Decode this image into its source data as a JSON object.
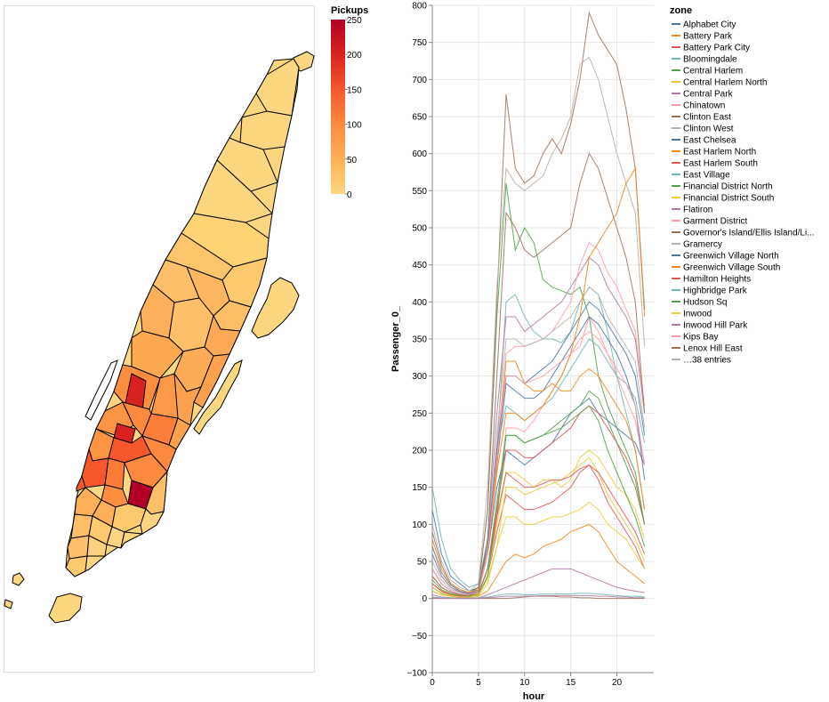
{
  "colors": {
    "scale": [
      "#fdd780",
      "#fdb058",
      "#fc8a3e",
      "#f4582b",
      "#d9221f",
      "#b10026"
    ],
    "border": "#000000",
    "axis": "#888888",
    "grid": "#e6e6e6",
    "palette": [
      "#4c78a8",
      "#f58518",
      "#e45756",
      "#72b7b2",
      "#54a24b",
      "#eeca3b",
      "#b279a2",
      "#ff9da6",
      "#9d755d",
      "#bab0ac"
    ]
  },
  "map_legend": {
    "title": "Pickups",
    "ticks": [
      "250",
      "200",
      "150",
      "100",
      "50",
      "0"
    ]
  },
  "line_legend": {
    "title": "zone",
    "entries": [
      "Alphabet City",
      "Battery Park",
      "Battery Park City",
      "Bloomingdale",
      "Central Harlem",
      "Central Harlem North",
      "Central Park",
      "Chinatown",
      "Clinton East",
      "Clinton West",
      "East Chelsea",
      "East Harlem North",
      "East Harlem South",
      "East Village",
      "Financial District North",
      "Financial District South",
      "Flatiron",
      "Garment District",
      "Governor's Island/Ellis Island/Li...",
      "Gramercy",
      "Greenwich Village North",
      "Greenwich Village South",
      "Hamilton Heights",
      "Highbridge Park",
      "Hudson Sq",
      "Inwood",
      "Inwood Hill Park",
      "Kips Bay",
      "Lenox Hill East",
      "…38 entries"
    ]
  },
  "chart_data": [
    {
      "type": "choropleth",
      "legend_title": "Pickups",
      "color_domain": [
        0,
        250
      ],
      "note_values": {
        "Midtown Center": 250,
        "Union Sq": 240,
        "Midtown East": 230,
        "Upper East Side South": 90
      }
    },
    {
      "type": "line",
      "xlabel": "hour",
      "ylabel": "Passenger_0_",
      "xlim": [
        0,
        24
      ],
      "ylim": [
        -100,
        800
      ],
      "x_ticks": [
        0,
        5,
        10,
        15,
        20
      ],
      "y_ticks": [
        -100,
        -50,
        0,
        50,
        100,
        150,
        200,
        250,
        300,
        350,
        400,
        450,
        500,
        550,
        600,
        650,
        700,
        750,
        800
      ],
      "grid": true,
      "legend_title": "zone",
      "legend_position": "right",
      "x": [
        0,
        1,
        2,
        3,
        4,
        5,
        6,
        7,
        8,
        9,
        10,
        11,
        12,
        13,
        14,
        15,
        16,
        17,
        18,
        19,
        20,
        21,
        22,
        23
      ],
      "series": [
        {
          "name": "Alphabet City",
          "values": [
            120,
            60,
            30,
            20,
            10,
            15,
            60,
            150,
            200,
            190,
            180,
            190,
            200,
            210,
            230,
            250,
            260,
            270,
            250,
            240,
            230,
            220,
            210,
            180
          ]
        },
        {
          "name": "Battery Park",
          "values": [
            10,
            5,
            3,
            2,
            2,
            3,
            10,
            30,
            50,
            60,
            55,
            60,
            70,
            75,
            80,
            90,
            95,
            100,
            90,
            70,
            50,
            40,
            30,
            20
          ]
        },
        {
          "name": "Battery Park City",
          "values": [
            20,
            10,
            5,
            3,
            3,
            5,
            30,
            90,
            140,
            130,
            120,
            120,
            125,
            130,
            140,
            150,
            170,
            180,
            160,
            130,
            110,
            90,
            70,
            40
          ]
        },
        {
          "name": "Bloomingdale",
          "values": [
            30,
            15,
            8,
            5,
            5,
            10,
            60,
            200,
            400,
            410,
            380,
            360,
            350,
            350,
            345,
            360,
            400,
            420,
            410,
            360,
            300,
            250,
            200,
            120
          ]
        },
        {
          "name": "Central Harlem",
          "values": [
            60,
            30,
            15,
            8,
            6,
            15,
            120,
            380,
            560,
            470,
            500,
            480,
            430,
            420,
            415,
            410,
            420,
            380,
            300,
            260,
            230,
            200,
            170,
            100
          ]
        },
        {
          "name": "Central Harlem North",
          "values": [
            20,
            10,
            5,
            3,
            3,
            5,
            30,
            100,
            170,
            170,
            160,
            150,
            160,
            160,
            150,
            160,
            190,
            200,
            190,
            170,
            150,
            140,
            120,
            80
          ]
        },
        {
          "name": "Central Park",
          "values": [
            5,
            2,
            1,
            1,
            1,
            1,
            5,
            10,
            15,
            20,
            25,
            30,
            35,
            40,
            40,
            40,
            35,
            30,
            25,
            20,
            15,
            12,
            10,
            8
          ]
        },
        {
          "name": "Chinatown",
          "values": [
            40,
            20,
            10,
            6,
            5,
            8,
            40,
            120,
            230,
            230,
            225,
            240,
            260,
            280,
            300,
            330,
            340,
            380,
            360,
            330,
            300,
            270,
            240,
            180
          ]
        },
        {
          "name": "Clinton East",
          "values": [
            90,
            45,
            20,
            12,
            8,
            15,
            120,
            400,
            680,
            580,
            560,
            570,
            600,
            620,
            600,
            640,
            700,
            790,
            760,
            740,
            720,
            660,
            580,
            390
          ]
        },
        {
          "name": "Clinton West",
          "values": [
            100,
            50,
            25,
            15,
            10,
            20,
            150,
            420,
            580,
            560,
            550,
            560,
            570,
            600,
            620,
            650,
            720,
            730,
            700,
            650,
            600,
            560,
            520,
            340
          ]
        },
        {
          "name": "East Chelsea",
          "values": [
            40,
            20,
            10,
            6,
            5,
            8,
            60,
            180,
            290,
            280,
            270,
            270,
            280,
            300,
            320,
            340,
            360,
            380,
            370,
            350,
            330,
            300,
            260,
            160
          ]
        },
        {
          "name": "East Harlem North",
          "values": [
            30,
            15,
            8,
            5,
            4,
            10,
            60,
            180,
            320,
            320,
            290,
            280,
            280,
            290,
            280,
            280,
            300,
            310,
            300,
            280,
            260,
            240,
            200,
            120
          ]
        },
        {
          "name": "East Harlem South",
          "values": [
            20,
            10,
            5,
            3,
            3,
            6,
            40,
            120,
            200,
            200,
            190,
            190,
            200,
            210,
            220,
            230,
            250,
            260,
            250,
            230,
            210,
            190,
            160,
            100
          ]
        },
        {
          "name": "East Village",
          "values": [
            150,
            80,
            40,
            25,
            15,
            20,
            80,
            200,
            260,
            250,
            240,
            250,
            260,
            270,
            290,
            310,
            330,
            350,
            340,
            320,
            300,
            290,
            270,
            210
          ]
        },
        {
          "name": "Financial District North",
          "values": [
            15,
            7,
            4,
            2,
            2,
            4,
            30,
            110,
            220,
            220,
            210,
            215,
            220,
            225,
            230,
            240,
            250,
            260,
            240,
            200,
            170,
            140,
            110,
            70
          ]
        },
        {
          "name": "Financial District South",
          "values": [
            10,
            5,
            3,
            2,
            2,
            3,
            20,
            70,
            150,
            150,
            140,
            145,
            150,
            155,
            160,
            170,
            180,
            190,
            170,
            140,
            120,
            100,
            80,
            50
          ]
        },
        {
          "name": "Flatiron",
          "values": [
            60,
            30,
            15,
            9,
            6,
            12,
            80,
            250,
            380,
            380,
            360,
            370,
            380,
            390,
            400,
            420,
            440,
            460,
            450,
            420,
            400,
            380,
            350,
            250
          ]
        },
        {
          "name": "Garment District",
          "values": [
            30,
            15,
            8,
            5,
            4,
            8,
            60,
            200,
            330,
            340,
            340,
            345,
            350,
            360,
            380,
            400,
            450,
            480,
            470,
            440,
            420,
            390,
            360,
            260
          ]
        },
        {
          "name": "Governor's Island/Ellis Island/Li...",
          "values": [
            0,
            0,
            0,
            0,
            0,
            0,
            0,
            0,
            0,
            1,
            2,
            3,
            3,
            3,
            2,
            2,
            1,
            1,
            0,
            0,
            0,
            0,
            0,
            0
          ]
        },
        {
          "name": "Gramercy",
          "values": [
            50,
            25,
            12,
            8,
            5,
            10,
            70,
            220,
            350,
            350,
            340,
            345,
            350,
            360,
            370,
            380,
            400,
            420,
            410,
            380,
            360,
            340,
            320,
            230
          ]
        },
        {
          "name": "Greenwich Village North",
          "values": [
            70,
            35,
            18,
            10,
            7,
            12,
            70,
            200,
            300,
            300,
            290,
            300,
            310,
            320,
            340,
            360,
            380,
            400,
            390,
            370,
            350,
            330,
            300,
            220
          ]
        },
        {
          "name": "Greenwich Village South",
          "values": [
            80,
            40,
            20,
            12,
            8,
            12,
            60,
            170,
            250,
            250,
            240,
            250,
            260,
            280,
            300,
            330,
            380,
            460,
            480,
            500,
            520,
            560,
            580,
            380
          ]
        },
        {
          "name": "Hamilton Heights",
          "values": [
            20,
            10,
            5,
            3,
            3,
            6,
            40,
            110,
            170,
            160,
            150,
            150,
            155,
            160,
            160,
            165,
            175,
            180,
            170,
            150,
            130,
            110,
            90,
            60
          ]
        },
        {
          "name": "Highbridge Park",
          "values": [
            2,
            1,
            1,
            0,
            0,
            1,
            2,
            4,
            6,
            6,
            5,
            5,
            6,
            6,
            6,
            6,
            7,
            7,
            6,
            5,
            4,
            3,
            3,
            2
          ]
        },
        {
          "name": "Hudson Sq",
          "values": [
            25,
            12,
            6,
            4,
            3,
            6,
            40,
            130,
            220,
            220,
            210,
            215,
            220,
            230,
            240,
            250,
            260,
            280,
            270,
            240,
            210,
            180,
            150,
            100
          ]
        },
        {
          "name": "Inwood",
          "values": [
            15,
            8,
            4,
            2,
            2,
            5,
            25,
            70,
            110,
            110,
            100,
            100,
            105,
            110,
            110,
            115,
            120,
            130,
            120,
            100,
            90,
            80,
            60,
            40
          ]
        },
        {
          "name": "Inwood Hill Park",
          "values": [
            1,
            0,
            0,
            0,
            0,
            0,
            1,
            2,
            3,
            3,
            3,
            3,
            4,
            4,
            4,
            4,
            4,
            4,
            3,
            3,
            2,
            2,
            1,
            1
          ]
        },
        {
          "name": "Kips Bay",
          "values": [
            40,
            20,
            10,
            6,
            5,
            10,
            60,
            190,
            300,
            300,
            290,
            295,
            300,
            310,
            320,
            330,
            350,
            360,
            350,
            330,
            310,
            290,
            260,
            180
          ]
        },
        {
          "name": "Lenox Hill East",
          "values": [
            30,
            15,
            8,
            5,
            4,
            10,
            80,
            300,
            520,
            500,
            470,
            460,
            470,
            480,
            490,
            500,
            560,
            600,
            580,
            540,
            500,
            460,
            400,
            250
          ]
        }
      ]
    }
  ]
}
